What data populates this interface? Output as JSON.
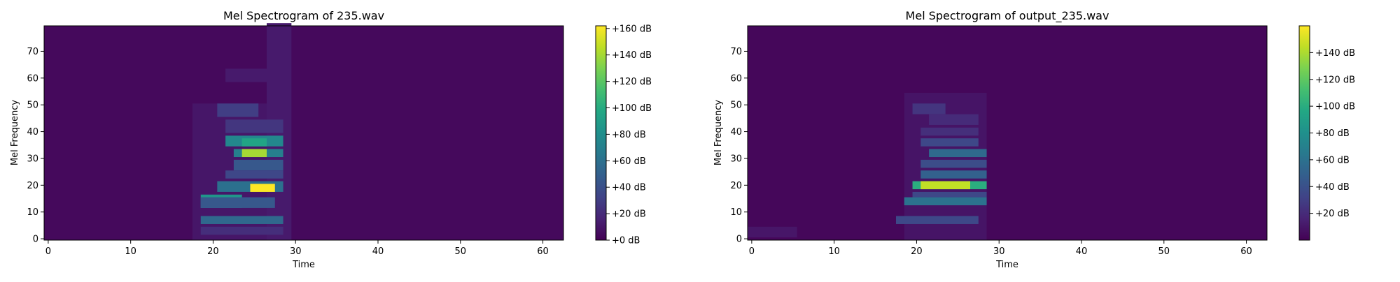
{
  "colors": {
    "viridis_low": "#440154",
    "viridis_high": "#fde725"
  },
  "chart_data": [
    {
      "type": "heatmap",
      "title": "Mel Spectrogram of 235.wav",
      "xlabel": "Time",
      "ylabel": "Mel Frequency",
      "xlim": [
        -0.5,
        62.5
      ],
      "ylim": [
        -0.5,
        79.5
      ],
      "xticks": [
        0,
        10,
        20,
        30,
        40,
        50,
        60
      ],
      "yticks": [
        0,
        10,
        20,
        30,
        40,
        50,
        60,
        70
      ],
      "colorbar": {
        "min": 0,
        "max": 162,
        "ticks": [
          0,
          20,
          40,
          60,
          80,
          100,
          120,
          140,
          160
        ],
        "labels": [
          "+0 dB",
          "+20 dB",
          "+40 dB",
          "+60 dB",
          "+80 dB",
          "+100 dB",
          "+120 dB",
          "+140 dB",
          "+160 dB"
        ]
      },
      "background_db": 4,
      "regions": [
        {
          "t": [
            18,
            28
          ],
          "f": [
            0,
            50
          ],
          "db": 10
        },
        {
          "t": [
            27,
            29
          ],
          "f": [
            0,
            80
          ],
          "db": 12
        },
        {
          "t": [
            22,
            26
          ],
          "f": [
            59,
            63
          ],
          "db": 12
        },
        {
          "t": [
            21,
            25
          ],
          "f": [
            46,
            50
          ],
          "db": 30
        },
        {
          "t": [
            22,
            28
          ],
          "f": [
            40,
            44
          ],
          "db": 26
        },
        {
          "t": [
            22,
            28
          ],
          "f": [
            35,
            38
          ],
          "db": 75
        },
        {
          "t": [
            24,
            26
          ],
          "f": [
            35,
            37
          ],
          "db": 95
        },
        {
          "t": [
            23,
            28
          ],
          "f": [
            31,
            33
          ],
          "db": 70
        },
        {
          "t": [
            24,
            26
          ],
          "f": [
            31,
            33
          ],
          "db": 140
        },
        {
          "t": [
            23,
            28
          ],
          "f": [
            26,
            29
          ],
          "db": 45
        },
        {
          "t": [
            22,
            28
          ],
          "f": [
            23,
            25
          ],
          "db": 35
        },
        {
          "t": [
            21,
            28
          ],
          "f": [
            18,
            21
          ],
          "db": 60
        },
        {
          "t": [
            25,
            27
          ],
          "f": [
            18,
            20
          ],
          "db": 162
        },
        {
          "t": [
            19,
            23
          ],
          "f": [
            12,
            16
          ],
          "db": 85
        },
        {
          "t": [
            19,
            27
          ],
          "f": [
            12,
            15
          ],
          "db": 45
        },
        {
          "t": [
            19,
            28
          ],
          "f": [
            6,
            8
          ],
          "db": 55
        },
        {
          "t": [
            19,
            28
          ],
          "f": [
            2,
            4
          ],
          "db": 22
        }
      ]
    },
    {
      "type": "heatmap",
      "title": "Mel Spectrogram of output_235.wav",
      "xlabel": "Time",
      "ylabel": "Mel Frequency",
      "xlim": [
        -0.5,
        62.5
      ],
      "ylim": [
        -0.5,
        79.5
      ],
      "xticks": [
        0,
        10,
        20,
        30,
        40,
        50,
        60
      ],
      "yticks": [
        0,
        10,
        20,
        30,
        40,
        50,
        60,
        70
      ],
      "colorbar": {
        "min": 0,
        "max": 160,
        "ticks": [
          20,
          40,
          60,
          80,
          100,
          120,
          140
        ],
        "labels": [
          "+20 dB",
          "+40 dB",
          "+60 dB",
          "+80 dB",
          "+100 dB",
          "+120 dB",
          "+140 dB"
        ]
      },
      "background_db": 3,
      "regions": [
        {
          "t": [
            0,
            5
          ],
          "f": [
            1,
            4
          ],
          "db": 10
        },
        {
          "t": [
            19,
            28
          ],
          "f": [
            0,
            54
          ],
          "db": 9
        },
        {
          "t": [
            20,
            23
          ],
          "f": [
            47,
            50
          ],
          "db": 25
        },
        {
          "t": [
            22,
            27
          ],
          "f": [
            43,
            46
          ],
          "db": 20
        },
        {
          "t": [
            21,
            27
          ],
          "f": [
            39,
            41
          ],
          "db": 22
        },
        {
          "t": [
            21,
            27
          ],
          "f": [
            35,
            37
          ],
          "db": 35
        },
        {
          "t": [
            22,
            28
          ],
          "f": [
            31,
            33
          ],
          "db": 55
        },
        {
          "t": [
            21,
            28
          ],
          "f": [
            27,
            29
          ],
          "db": 38
        },
        {
          "t": [
            21,
            28
          ],
          "f": [
            23,
            25
          ],
          "db": 50
        },
        {
          "t": [
            20,
            28
          ],
          "f": [
            19,
            21
          ],
          "db": 100
        },
        {
          "t": [
            21,
            26
          ],
          "f": [
            19,
            21
          ],
          "db": 145
        },
        {
          "t": [
            20,
            28
          ],
          "f": [
            16,
            17
          ],
          "db": 35
        },
        {
          "t": [
            19,
            28
          ],
          "f": [
            13,
            15
          ],
          "db": 60
        },
        {
          "t": [
            18,
            27
          ],
          "f": [
            6,
            8
          ],
          "db": 35
        }
      ]
    }
  ]
}
